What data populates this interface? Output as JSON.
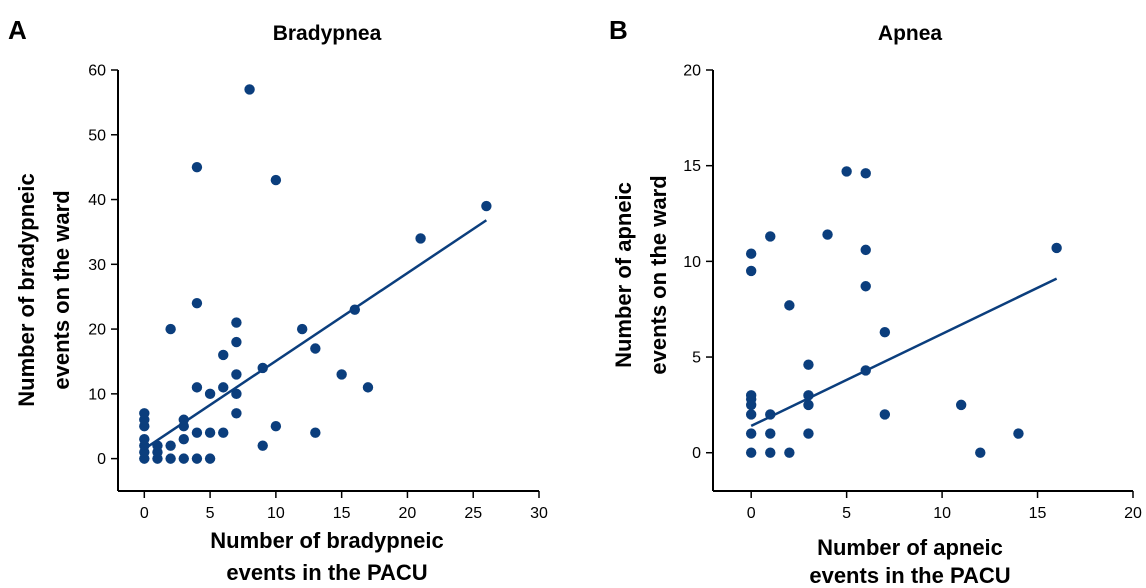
{
  "chart_data": [
    {
      "type": "scatter",
      "panel_letter": "A",
      "title": "Bradypnea",
      "xlabel": [
        "Number of bradypneic",
        "events in the PACU"
      ],
      "ylabel": [
        "Number of bradypneic",
        "events on the ward"
      ],
      "xlim": [
        -2,
        30
      ],
      "ylim": [
        -5,
        60
      ],
      "xticks": [
        0,
        5,
        10,
        15,
        20,
        25,
        30
      ],
      "yticks": [
        0,
        10,
        20,
        30,
        40,
        50,
        60
      ],
      "color": "#0b3e7d",
      "fit_line": {
        "x": [
          0,
          26
        ],
        "y": [
          1.5,
          36.8
        ]
      },
      "points": [
        {
          "x": 0,
          "y": 0
        },
        {
          "x": 0,
          "y": 1
        },
        {
          "x": 0,
          "y": 2
        },
        {
          "x": 0,
          "y": 3
        },
        {
          "x": 0,
          "y": 5
        },
        {
          "x": 0,
          "y": 6
        },
        {
          "x": 0,
          "y": 7
        },
        {
          "x": 1,
          "y": 0
        },
        {
          "x": 1,
          "y": 1
        },
        {
          "x": 1,
          "y": 2
        },
        {
          "x": 2,
          "y": 0
        },
        {
          "x": 2,
          "y": 2
        },
        {
          "x": 2,
          "y": 20
        },
        {
          "x": 3,
          "y": 0
        },
        {
          "x": 3,
          "y": 3
        },
        {
          "x": 3,
          "y": 5
        },
        {
          "x": 3,
          "y": 6
        },
        {
          "x": 4,
          "y": 0
        },
        {
          "x": 4,
          "y": 4
        },
        {
          "x": 4,
          "y": 11
        },
        {
          "x": 4,
          "y": 24
        },
        {
          "x": 4,
          "y": 45
        },
        {
          "x": 5,
          "y": 0
        },
        {
          "x": 5,
          "y": 4
        },
        {
          "x": 5,
          "y": 10
        },
        {
          "x": 6,
          "y": 4
        },
        {
          "x": 6,
          "y": 11
        },
        {
          "x": 6,
          "y": 16
        },
        {
          "x": 7,
          "y": 7
        },
        {
          "x": 7,
          "y": 10
        },
        {
          "x": 7,
          "y": 13
        },
        {
          "x": 7,
          "y": 18
        },
        {
          "x": 7,
          "y": 21
        },
        {
          "x": 8,
          "y": 57
        },
        {
          "x": 9,
          "y": 2
        },
        {
          "x": 9,
          "y": 14
        },
        {
          "x": 10,
          "y": 5
        },
        {
          "x": 10,
          "y": 43
        },
        {
          "x": 12,
          "y": 20
        },
        {
          "x": 13,
          "y": 4
        },
        {
          "x": 13,
          "y": 17
        },
        {
          "x": 15,
          "y": 13
        },
        {
          "x": 16,
          "y": 23
        },
        {
          "x": 17,
          "y": 11
        },
        {
          "x": 21,
          "y": 34
        },
        {
          "x": 26,
          "y": 39
        }
      ]
    },
    {
      "type": "scatter",
      "panel_letter": "B",
      "title": "Apnea",
      "xlabel": [
        "Number of apneic",
        "events in the PACU"
      ],
      "ylabel": [
        "Number of apneic",
        "events on the ward"
      ],
      "xlim": [
        -2,
        20
      ],
      "ylim": [
        -2,
        20
      ],
      "xticks": [
        0,
        5,
        10,
        15,
        20
      ],
      "yticks": [
        0,
        5,
        10,
        15,
        20
      ],
      "color": "#0b3e7d",
      "fit_line": {
        "x": [
          0,
          16
        ],
        "y": [
          1.4,
          9.1
        ]
      },
      "points": [
        {
          "x": 0,
          "y": 0
        },
        {
          "x": 0,
          "y": 1
        },
        {
          "x": 0,
          "y": 2
        },
        {
          "x": 0,
          "y": 2.5
        },
        {
          "x": 0,
          "y": 2.8
        },
        {
          "x": 0,
          "y": 3
        },
        {
          "x": 0,
          "y": 9.5
        },
        {
          "x": 0,
          "y": 10.4
        },
        {
          "x": 1,
          "y": 0
        },
        {
          "x": 1,
          "y": 1
        },
        {
          "x": 1,
          "y": 2
        },
        {
          "x": 1,
          "y": 11.3
        },
        {
          "x": 2,
          "y": 0
        },
        {
          "x": 2,
          "y": 7.7
        },
        {
          "x": 3,
          "y": 1
        },
        {
          "x": 3,
          "y": 2.5
        },
        {
          "x": 3,
          "y": 3
        },
        {
          "x": 3,
          "y": 4.6
        },
        {
          "x": 4,
          "y": 11.4
        },
        {
          "x": 5,
          "y": 14.7
        },
        {
          "x": 6,
          "y": 4.3
        },
        {
          "x": 6,
          "y": 8.7
        },
        {
          "x": 6,
          "y": 10.6
        },
        {
          "x": 6,
          "y": 14.6
        },
        {
          "x": 7,
          "y": 2
        },
        {
          "x": 7,
          "y": 6.3
        },
        {
          "x": 11,
          "y": 2.5
        },
        {
          "x": 12,
          "y": 0
        },
        {
          "x": 14,
          "y": 1
        },
        {
          "x": 16,
          "y": 10.7
        }
      ]
    }
  ]
}
